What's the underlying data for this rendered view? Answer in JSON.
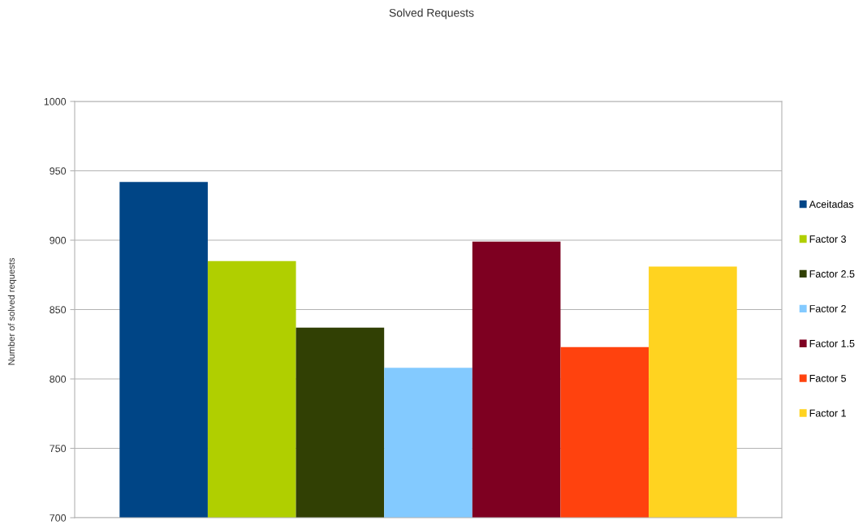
{
  "chart_data": {
    "type": "bar",
    "title": "Solved Requests",
    "ylabel": "Number of solved requests",
    "categories": [
      null
    ],
    "series": [
      {
        "name": "Aceitadas",
        "color": "#004586",
        "values": [
          942
        ]
      },
      {
        "name": "Factor 3",
        "color": "#b0cf00",
        "values": [
          885
        ]
      },
      {
        "name": "Factor 2.5",
        "color": "#314004",
        "values": [
          837
        ]
      },
      {
        "name": "Factor 2",
        "color": "#83caff",
        "values": [
          808
        ]
      },
      {
        "name": "Factor 1.5",
        "color": "#7e0021",
        "values": [
          899
        ]
      },
      {
        "name": "Factor 5",
        "color": "#ff420e",
        "values": [
          823
        ]
      },
      {
        "name": "Factor 1",
        "color": "#ffd320",
        "values": [
          881
        ]
      }
    ],
    "ylim": [
      700,
      1000
    ],
    "yticks": [
      700,
      750,
      800,
      850,
      900,
      950,
      1000
    ],
    "grid": "y",
    "legend": "right"
  }
}
